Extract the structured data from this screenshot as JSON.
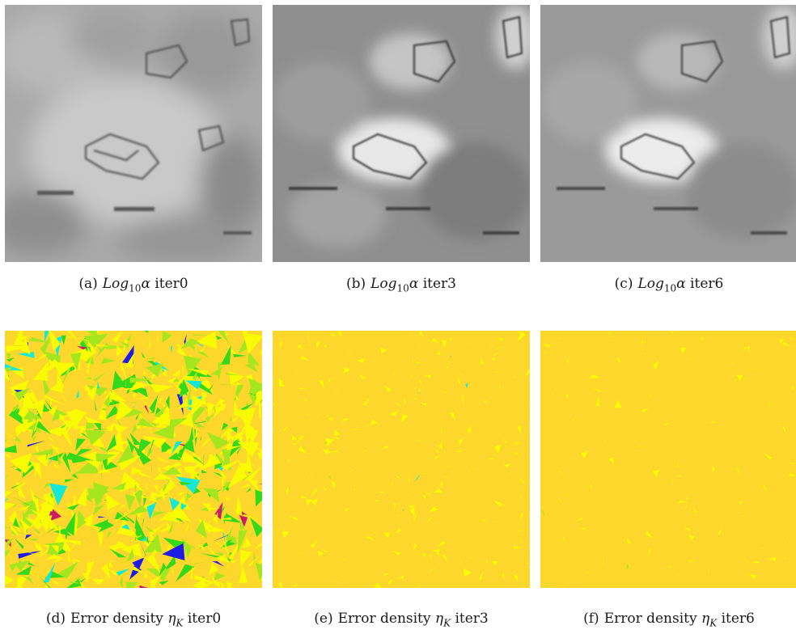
{
  "figure": {
    "panels": [
      {
        "label": "(a)",
        "math": "Log",
        "math_sub": "10",
        "math_symbol": "α",
        "text": "iter0",
        "kind": "log-alpha",
        "iteration": 0
      },
      {
        "label": "(b)",
        "math": "Log",
        "math_sub": "10",
        "math_symbol": "α",
        "text": "iter3",
        "kind": "log-alpha",
        "iteration": 3
      },
      {
        "label": "(c)",
        "math": "Log",
        "math_sub": "10",
        "math_symbol": "α",
        "text": "iter6",
        "kind": "log-alpha",
        "iteration": 6
      },
      {
        "label": "(d)",
        "prefix": "Error density",
        "math": "η",
        "math_sub": "K",
        "text": "iter0",
        "kind": "error-density",
        "iteration": 0
      },
      {
        "label": "(e)",
        "prefix": "Error density",
        "math": "η",
        "math_sub": "K",
        "text": "iter3",
        "kind": "error-density",
        "iteration": 3
      },
      {
        "label": "(f)",
        "prefix": "Error density",
        "math": "η",
        "math_sub": "K",
        "text": "iter6",
        "kind": "error-density",
        "iteration": 6
      }
    ],
    "colors": {
      "error_background": "#fdd72b",
      "error_yellow": "#f9fb04",
      "error_green": "#33d91a",
      "error_lime": "#a6e61f",
      "error_cyan": "#17e8d5",
      "error_blue": "#1c1ce6",
      "error_magenta": "#cc1a66",
      "gray_light": "#d8d8d8",
      "gray_dark": "#6e6e6e"
    }
  }
}
